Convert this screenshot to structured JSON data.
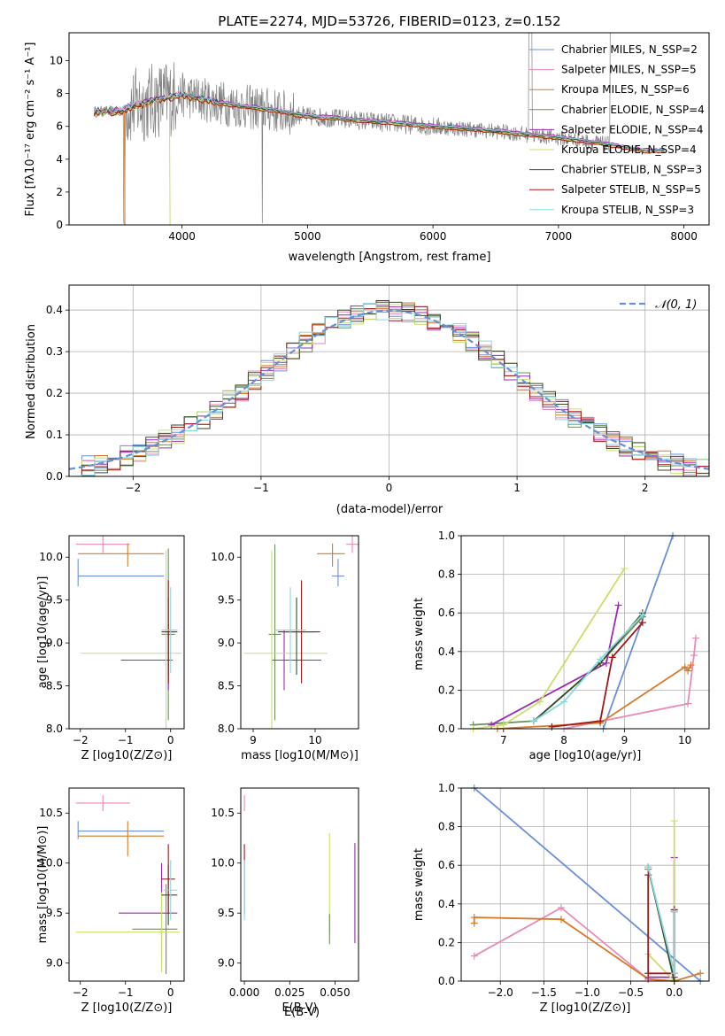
{
  "chart_data": [
    {
      "type": "line",
      "title": "PLATE=2274, MJD=53726, FIBERID=0123, z=0.152",
      "xlabel": "wavelength [Angstrom, rest frame]",
      "ylabel": "Flux [fλ10⁻¹⁷ erg cm⁻² s⁻¹ A⁻¹]",
      "xlim": [
        3100,
        8200
      ],
      "ylim": [
        0,
        11.7
      ],
      "xticks": [
        4000,
        5000,
        6000,
        7000,
        8000
      ],
      "yticks": [
        0,
        2,
        4,
        6,
        8,
        10
      ],
      "grid": false,
      "legend_position": "upper right",
      "series": [
        {
          "name": "Chabrier MILES, N_SSP=2",
          "color": "#6a8fd8"
        },
        {
          "name": "Salpeter MILES, N_SSP=5",
          "color": "#e68ab8"
        },
        {
          "name": "Kroupa MILES, N_SSP=6",
          "color": "#d87a2a"
        },
        {
          "name": "Chabrier ELODIE, N_SSP=4",
          "color": "#6b8f5e"
        },
        {
          "name": "Salpeter ELODIE, N_SSP=4",
          "color": "#9a2ab3"
        },
        {
          "name": "Kroupa ELODIE, N_SSP=4",
          "color": "#c8e06a"
        },
        {
          "name": "Chabrier STELIB, N_SSP=3",
          "color": "#3a4a2a"
        },
        {
          "name": "Salpeter STELIB, N_SSP=5",
          "color": "#a01818"
        },
        {
          "name": "Kroupa STELIB, N_SSP=3",
          "color": "#8ad8e0"
        }
      ],
      "data_shape": {
        "wavelength": [
          3300,
          3500,
          3600,
          3800,
          4000,
          4200,
          4400,
          4700,
          5000,
          5200,
          5500,
          6000,
          6500,
          7000,
          7300,
          7700
        ],
        "flux": [
          6.9,
          6.9,
          7.2,
          7.6,
          7.9,
          7.6,
          7.3,
          7.0,
          6.6,
          6.5,
          6.3,
          6.0,
          5.7,
          5.3,
          5.0,
          4.5
        ]
      }
    },
    {
      "type": "step",
      "xlabel": "(data-model)/error",
      "ylabel": "Normed distribution",
      "xlim": [
        -2.5,
        2.5
      ],
      "ylim": [
        0,
        0.46
      ],
      "xticks": [
        -2,
        -1,
        0,
        1,
        2
      ],
      "yticks": [
        0.0,
        0.1,
        0.2,
        0.3,
        0.4
      ],
      "grid": true,
      "legend": [
        {
          "name": "N(0, 1)",
          "label": "𝒩(0, 1)",
          "color": "#6a8fd8",
          "style": "dashed"
        }
      ],
      "gaussian": {
        "mu": 0,
        "sigma": 1
      }
    },
    {
      "type": "errorbar",
      "xlabel": "Z [log10(Z/Z⊙)]",
      "ylabel": "age  [log10(age/yr)]",
      "xlim": [
        -2.25,
        0.3
      ],
      "ylim": [
        8.0,
        10.25
      ],
      "xticks": [
        -2,
        -1,
        0
      ],
      "yticks": [
        8.0,
        8.5,
        9.0,
        9.5,
        10.0
      ],
      "points": [
        {
          "series": "Chabrier MILES",
          "x": -2.05,
          "y": 9.78,
          "xerr": [
            0,
            1.9
          ],
          "yerr": [
            0.12,
            0.2
          ]
        },
        {
          "series": "Salpeter MILES",
          "x": -1.5,
          "y": 10.15,
          "xerr": [
            0.6,
            0.6
          ],
          "yerr": [
            0.1,
            0.1
          ]
        },
        {
          "series": "Kroupa MILES",
          "x": -0.95,
          "y": 10.04,
          "xerr": [
            1.1,
            0.8
          ],
          "yerr": [
            0.15,
            0.12
          ]
        },
        {
          "series": "Chabrier ELODIE",
          "x": -0.05,
          "y": 9.1,
          "xerr": [
            0.15,
            0.15
          ],
          "yerr": [
            1.0,
            1.0
          ]
        },
        {
          "series": "Salpeter ELODIE",
          "x": -0.05,
          "y": 8.8,
          "xerr": [
            1.05,
            0.1
          ],
          "yerr": [
            0.35,
            0.35
          ]
        },
        {
          "series": "Kroupa ELODIE",
          "x": -0.1,
          "y": 8.88,
          "xerr": [
            1.9,
            0.35
          ],
          "yerr": [
            1.2,
            1.2
          ]
        },
        {
          "series": "Chabrier STELIB",
          "x": -0.05,
          "y": 9.13,
          "xerr": [
            0.15,
            0.2
          ],
          "yerr": [
            0.5,
            0.4
          ]
        },
        {
          "series": "Salpeter STELIB",
          "x": -0.05,
          "y": 9.13,
          "xerr": [
            0.15,
            0.15
          ],
          "yerr": [
            0.6,
            0.6
          ]
        },
        {
          "series": "Kroupa STELIB",
          "x": 0.0,
          "y": 9.15,
          "xerr": [
            0.2,
            0.15
          ],
          "yerr": [
            0.5,
            0.5
          ]
        }
      ]
    },
    {
      "type": "errorbar",
      "xlabel": "mass [log10(M/M⊙)]",
      "xlim": [
        8.8,
        10.7
      ],
      "ylim": [
        8.0,
        10.25
      ],
      "xticks": [
        9,
        10
      ],
      "yticks": [
        8.0,
        8.5,
        9.0,
        9.5,
        10.0
      ],
      "points": [
        {
          "series": "Chabrier MILES",
          "x": 10.37,
          "y": 9.78,
          "xerr": [
            0.1,
            0.1
          ],
          "yerr": [
            0.12,
            0.2
          ]
        },
        {
          "series": "Salpeter MILES",
          "x": 10.6,
          "y": 10.15,
          "xerr": [
            0.1,
            0.1
          ],
          "yerr": [
            0.1,
            0.1
          ]
        },
        {
          "series": "Kroupa MILES",
          "x": 10.28,
          "y": 10.04,
          "xerr": [
            0.25,
            0.2
          ],
          "yerr": [
            0.15,
            0.12
          ]
        },
        {
          "series": "Chabrier ELODIE",
          "x": 9.35,
          "y": 9.1,
          "xerr": [
            0.1,
            0.1
          ],
          "yerr": [
            1.0,
            1.05
          ]
        },
        {
          "series": "Salpeter ELODIE",
          "x": 9.5,
          "y": 8.8,
          "xerr": [
            0.2,
            0.6
          ],
          "yerr": [
            0.35,
            0.35
          ]
        },
        {
          "series": "Kroupa ELODIE",
          "x": 9.3,
          "y": 8.88,
          "xerr": [
            0.45,
            0.9
          ],
          "yerr": [
            1.2,
            1.2
          ]
        },
        {
          "series": "Chabrier STELIB",
          "x": 9.7,
          "y": 9.13,
          "xerr": [
            0.3,
            0.3
          ],
          "yerr": [
            0.5,
            0.4
          ]
        },
        {
          "series": "Salpeter STELIB",
          "x": 9.78,
          "y": 9.13,
          "xerr": [
            0.3,
            0.3
          ],
          "yerr": [
            0.6,
            0.6
          ]
        },
        {
          "series": "Kroupa STELIB",
          "x": 9.6,
          "y": 9.15,
          "xerr": [
            0.25,
            0.25
          ],
          "yerr": [
            0.5,
            0.5
          ]
        }
      ]
    },
    {
      "type": "line",
      "xlabel": "age  [log10(age/yr)]",
      "ylabel": "mass weight",
      "xlim": [
        6.3,
        10.4
      ],
      "ylim": [
        0,
        1.0
      ],
      "xticks": [
        7,
        8,
        9,
        10
      ],
      "yticks": [
        0.0,
        0.2,
        0.4,
        0.6,
        0.8,
        1.0
      ],
      "grid": true,
      "series": [
        {
          "name": "Chabrier MILES",
          "x": [
            8.65,
            9.8
          ],
          "y": [
            0.0,
            1.0
          ]
        },
        {
          "name": "Salpeter MILES",
          "x": [
            8.0,
            10.05,
            10.15,
            10.18
          ],
          "y": [
            0.0,
            0.13,
            0.38,
            0.47
          ]
        },
        {
          "name": "Kroupa MILES",
          "x": [
            6.9,
            8.6,
            10.0,
            10.05,
            10.1
          ],
          "y": [
            0.0,
            0.03,
            0.32,
            0.3,
            0.33
          ]
        },
        {
          "name": "Chabrier ELODIE",
          "x": [
            6.5,
            7.5,
            8.6,
            9.3
          ],
          "y": [
            0.02,
            0.04,
            0.34,
            0.58
          ]
        },
        {
          "name": "Salpeter ELODIE",
          "x": [
            6.8,
            8.7,
            8.9
          ],
          "y": [
            0.02,
            0.34,
            0.64
          ]
        },
        {
          "name": "Kroupa ELODIE",
          "x": [
            6.5,
            7.0,
            7.6,
            9.0
          ],
          "y": [
            0.0,
            0.02,
            0.14,
            0.83
          ]
        },
        {
          "name": "Chabrier STELIB",
          "x": [
            7.5,
            8.6,
            9.3
          ],
          "y": [
            0.04,
            0.34,
            0.6
          ]
        },
        {
          "name": "Salpeter STELIB",
          "x": [
            7.8,
            8.6,
            8.8,
            9.3
          ],
          "y": [
            0.01,
            0.04,
            0.37,
            0.55
          ]
        },
        {
          "name": "Kroupa STELIB",
          "x": [
            7.5,
            8.0,
            8.6,
            9.3
          ],
          "y": [
            0.04,
            0.14,
            0.36,
            0.59
          ]
        }
      ]
    },
    {
      "type": "errorbar",
      "xlabel": "Z [log10(Z/Z⊙)]",
      "ylabel": "mass [log10(M/M⊙)]",
      "xlim": [
        -2.25,
        0.3
      ],
      "ylim": [
        8.82,
        10.75
      ],
      "xticks": [
        -2,
        -1,
        0
      ],
      "yticks": [
        9.0,
        9.5,
        10.0,
        10.5
      ],
      "points": [
        {
          "series": "Chabrier MILES",
          "x": -2.05,
          "y": 10.32,
          "xerr": [
            0,
            1.9
          ],
          "yerr": [
            0.08,
            0.1
          ]
        },
        {
          "series": "Salpeter MILES",
          "x": -1.5,
          "y": 10.6,
          "xerr": [
            0.6,
            0.6
          ],
          "yerr": [
            0.08,
            0.08
          ]
        },
        {
          "series": "Kroupa MILES",
          "x": -0.95,
          "y": 10.27,
          "xerr": [
            1.1,
            0.8
          ],
          "yerr": [
            0.2,
            0.15
          ]
        },
        {
          "series": "Chabrier ELODIE",
          "x": -0.1,
          "y": 9.34,
          "xerr": [
            0.75,
            0.25
          ],
          "yerr": [
            0.45,
            0.45
          ]
        },
        {
          "series": "Salpeter ELODIE",
          "x": -0.2,
          "y": 9.5,
          "xerr": [
            0.95,
            0.35
          ],
          "yerr": [
            0.5,
            0.5
          ]
        },
        {
          "series": "Kroupa ELODIE",
          "x": -0.2,
          "y": 9.31,
          "xerr": [
            1.9,
            0.4
          ],
          "yerr": [
            0.4,
            0.4
          ]
        },
        {
          "series": "Chabrier STELIB",
          "x": -0.05,
          "y": 9.68,
          "xerr": [
            0.15,
            0.2
          ],
          "yerr": [
            0.3,
            0.3
          ]
        },
        {
          "series": "Salpeter STELIB",
          "x": -0.05,
          "y": 9.84,
          "xerr": [
            0.15,
            0.15
          ],
          "yerr": [
            0.35,
            0.35
          ]
        },
        {
          "series": "Kroupa STELIB",
          "x": 0.0,
          "y": 9.73,
          "xerr": [
            0.15,
            0.15
          ],
          "yerr": [
            0.3,
            0.3
          ]
        }
      ]
    },
    {
      "type": "errorbar",
      "xlabel": "E(B-V)",
      "xlim": [
        -0.002,
        0.063
      ],
      "ylim": [
        8.82,
        10.75
      ],
      "xticks": [
        0.0,
        0.025,
        0.05
      ],
      "xticklabels": [
        "0.000",
        "0.025",
        "0.050"
      ],
      "yticks": [
        9.0,
        9.5,
        10.0,
        10.5
      ],
      "points": [
        {
          "series": "Salpeter MILES",
          "x": 0.0,
          "y": 10.6,
          "yerr": [
            0.08,
            0.08
          ]
        },
        {
          "series": "Salpeter STELIB",
          "x": 0.0,
          "y": 9.84,
          "yerr": [
            0.35,
            0.35
          ]
        },
        {
          "series": "Kroupa STELIB",
          "x": 0.0,
          "y": 9.73,
          "yerr": [
            0.3,
            0.3
          ]
        },
        {
          "series": "Kroupa ELODIE",
          "x": 0.047,
          "y": 9.8,
          "yerr": [
            0.5,
            0.5
          ]
        },
        {
          "series": "Chabrier ELODIE",
          "x": 0.047,
          "y": 9.34,
          "yerr": [
            0.15,
            0.15
          ]
        },
        {
          "series": "Salpeter ELODIE",
          "x": 0.061,
          "y": 9.7,
          "yerr": [
            0.5,
            0.5
          ]
        }
      ]
    },
    {
      "type": "line",
      "xlabel": "Z [log10(Z/Z⊙)]",
      "ylabel": "mass weight",
      "xlim": [
        -2.45,
        0.4
      ],
      "ylim": [
        0,
        1.0
      ],
      "xticks": [
        -2.0,
        -1.5,
        -1.0,
        -0.5,
        0.0
      ],
      "yticks": [
        0.0,
        0.2,
        0.4,
        0.6,
        0.8,
        1.0
      ],
      "grid": true,
      "series": [
        {
          "name": "Chabrier MILES",
          "x": [
            -2.3,
            0.3
          ],
          "y": [
            1.0,
            0.0
          ]
        },
        {
          "name": "Salpeter MILES",
          "x": [
            -2.3,
            -1.3,
            -0.3,
            0.0
          ],
          "y": [
            0.13,
            0.38,
            0.01,
            0.0
          ]
        },
        {
          "name": "Kroupa MILES",
          "x": [
            -2.3,
            -2.3,
            -1.3,
            -0.3,
            0.0,
            0.3
          ],
          "y": [
            0.3,
            0.33,
            0.32,
            0.01,
            0.0,
            0.04
          ]
        },
        {
          "name": "Chabrier ELODIE",
          "x": [
            -0.3,
            -0.3,
            0.0
          ],
          "y": [
            0.58,
            0.58,
            0.04
          ]
        },
        {
          "name": "Salpeter ELODIE",
          "x": [
            -0.3,
            0.0,
            0.0,
            0.0
          ],
          "y": [
            0.02,
            0.02,
            0.36,
            0.64
          ]
        },
        {
          "name": "Kroupa ELODIE",
          "x": [
            -0.3,
            0.0,
            0.0
          ],
          "y": [
            0.14,
            0.0,
            0.83
          ]
        },
        {
          "name": "Chabrier STELIB",
          "x": [
            -0.3,
            0.0,
            0.0
          ],
          "y": [
            0.59,
            0.0,
            0.36
          ]
        },
        {
          "name": "Salpeter STELIB",
          "x": [
            -0.3,
            -0.3,
            0.0,
            0.0
          ],
          "y": [
            0.55,
            0.04,
            0.04,
            0.37
          ]
        },
        {
          "name": "Kroupa STELIB",
          "x": [
            -0.3,
            0.0,
            0.0
          ],
          "y": [
            0.59,
            0.04,
            0.36
          ]
        }
      ]
    }
  ]
}
